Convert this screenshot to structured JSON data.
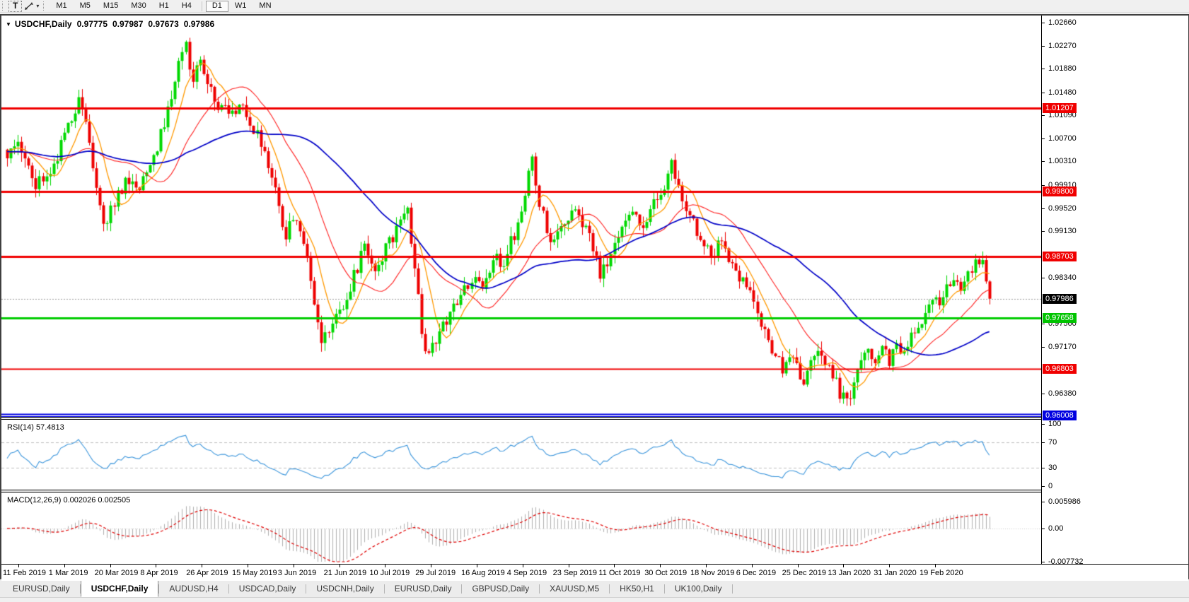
{
  "ui": {
    "toolbar": {
      "text_tool_label": "T",
      "timeframes": [
        {
          "label": "M1",
          "active": false
        },
        {
          "label": "M5",
          "active": false
        },
        {
          "label": "M15",
          "active": false
        },
        {
          "label": "M30",
          "active": false
        },
        {
          "label": "H1",
          "active": false
        },
        {
          "label": "H4",
          "active": false
        },
        {
          "label": "D1",
          "active": true
        },
        {
          "label": "W1",
          "active": false
        },
        {
          "label": "MN",
          "active": false
        }
      ]
    },
    "title": {
      "symbol": "USDCHF,Daily",
      "open": "0.97775",
      "high": "0.97987",
      "low": "0.97673",
      "close": "0.97986"
    },
    "rsi": {
      "label": "RSI(14) 57.4813",
      "axis_labels": [
        "100",
        "70",
        "30",
        "0"
      ]
    },
    "macd": {
      "label": "MACD(12,26,9) 0.002026 0.002505",
      "axis_labels": [
        "0.005986",
        "0.00",
        "-0.007732"
      ]
    },
    "tabs": [
      {
        "label": "EURUSD,Daily",
        "active": false
      },
      {
        "label": "USDCHF,Daily",
        "active": true
      },
      {
        "label": "AUDUSD,H4",
        "active": false
      },
      {
        "label": "USDCAD,Daily",
        "active": false
      },
      {
        "label": "USDCNH,Daily",
        "active": false
      },
      {
        "label": "EURUSD,Daily",
        "active": false
      },
      {
        "label": "GBPUSD,Daily",
        "active": false
      },
      {
        "label": "XAUUSD,M5",
        "active": false
      },
      {
        "label": "HK50,H1",
        "active": false
      },
      {
        "label": "UK100,Daily",
        "active": false
      }
    ]
  },
  "chart_data": {
    "type": "candlestick",
    "symbol": "USDCHF",
    "timeframe": "Daily",
    "ohlc_current": {
      "open": 0.97775,
      "high": 0.97987,
      "low": 0.97673,
      "close": 0.97986
    },
    "current_price": {
      "value": 0.97986,
      "label": "0.97986"
    },
    "y_axis_ticks": [
      {
        "price": 1.0266,
        "label": "1.02660"
      },
      {
        "price": 1.0227,
        "label": "1.02270"
      },
      {
        "price": 1.0188,
        "label": "1.01880"
      },
      {
        "price": 1.0148,
        "label": "1.01480"
      },
      {
        "price": 1.0109,
        "label": "1.01090"
      },
      {
        "price": 1.007,
        "label": "1.00700"
      },
      {
        "price": 1.0031,
        "label": "1.00310"
      },
      {
        "price": 0.9991,
        "label": "0.99910"
      },
      {
        "price": 0.9952,
        "label": "0.99520"
      },
      {
        "price": 0.9913,
        "label": "0.99130"
      },
      {
        "price": 0.9834,
        "label": "0.98340"
      },
      {
        "price": 0.9756,
        "label": "0.97560"
      },
      {
        "price": 0.9717,
        "label": "0.97170"
      },
      {
        "price": 0.9638,
        "label": "0.96380"
      }
    ],
    "horizontal_levels": [
      {
        "price": 1.01207,
        "label": "1.01207",
        "color": "#f00000",
        "style": "solid",
        "width": 3
      },
      {
        "price": 0.998,
        "label": "0.99800",
        "color": "#f00000",
        "style": "solid",
        "width": 3
      },
      {
        "price": 0.98703,
        "label": "0.98703",
        "color": "#f00000",
        "style": "solid",
        "width": 3
      },
      {
        "price": 0.97658,
        "label": "0.97658",
        "color": "#00cc00",
        "style": "solid",
        "width": 3
      },
      {
        "price": 0.96803,
        "label": "0.96803",
        "color": "#f00000",
        "style": "solid",
        "width": 2
      },
      {
        "price": 0.96008,
        "label": "0.96008",
        "color": "#0000e0",
        "style": "double",
        "width": 2
      }
    ],
    "x_axis_dates": [
      "11 Feb 2019",
      "1 Mar 2019",
      "20 Mar 2019",
      "8 Apr 2019",
      "26 Apr 2019",
      "15 May 2019",
      "3 Jun 2019",
      "21 Jun 2019",
      "10 Jul 2019",
      "29 Jul 2019",
      "16 Aug 2019",
      "4 Sep 2019",
      "23 Sep 2019",
      "11 Oct 2019",
      "30 Oct 2019",
      "18 Nov 2019",
      "6 Dec 2019",
      "25 Dec 2019",
      "13 Jan 2020",
      "31 Jan 2020",
      "19 Feb 2020"
    ],
    "y_range": [
      0.95985,
      1.0278
    ],
    "days": 276,
    "last_close": 0.97986,
    "price_path_anchors": [
      [
        -55,
        1.006
      ],
      [
        -25,
        1.004
      ],
      [
        -8,
        1.0045
      ],
      [
        0,
        1.0048
      ],
      [
        2,
        1.0068
      ],
      [
        5,
        1.0042
      ],
      [
        8,
        0.9992
      ],
      [
        11,
        1.0008
      ],
      [
        14,
        1.004
      ],
      [
        17,
        1.009
      ],
      [
        20,
        1.0128
      ],
      [
        22,
        1.01
      ],
      [
        24,
        1.0018
      ],
      [
        27,
        0.9925
      ],
      [
        30,
        0.9962
      ],
      [
        33,
        1.0
      ],
      [
        36,
        0.9985
      ],
      [
        39,
        1.0008
      ],
      [
        42,
        1.0052
      ],
      [
        45,
        1.012
      ],
      [
        48,
        1.019
      ],
      [
        50,
        1.0226
      ],
      [
        52,
        1.0168
      ],
      [
        54,
        1.0212
      ],
      [
        56,
        1.0158
      ],
      [
        59,
        1.0128
      ],
      [
        63,
        1.0112
      ],
      [
        66,
        1.0125
      ],
      [
        69,
        1.0088
      ],
      [
        72,
        1.004
      ],
      [
        75,
        0.9982
      ],
      [
        78,
        0.9906
      ],
      [
        80,
        0.9932
      ],
      [
        83,
        0.9896
      ],
      [
        86,
        0.9792
      ],
      [
        88,
        0.9728
      ],
      [
        91,
        0.9762
      ],
      [
        94,
        0.9788
      ],
      [
        97,
        0.9836
      ],
      [
        100,
        0.9886
      ],
      [
        103,
        0.9854
      ],
      [
        106,
        0.9882
      ],
      [
        109,
        0.9914
      ],
      [
        112,
        0.9948
      ],
      [
        114,
        0.9848
      ],
      [
        116,
        0.9742
      ],
      [
        118,
        0.9698
      ],
      [
        121,
        0.9742
      ],
      [
        124,
        0.9778
      ],
      [
        127,
        0.9802
      ],
      [
        130,
        0.983
      ],
      [
        133,
        0.9812
      ],
      [
        136,
        0.9868
      ],
      [
        139,
        0.9862
      ],
      [
        142,
        0.9908
      ],
      [
        145,
        0.9978
      ],
      [
        147,
        1.0038
      ],
      [
        149,
        0.9958
      ],
      [
        152,
        0.99
      ],
      [
        155,
        0.9922
      ],
      [
        158,
        0.9948
      ],
      [
        161,
        0.9928
      ],
      [
        164,
        0.9888
      ],
      [
        166,
        0.984
      ],
      [
        169,
        0.9872
      ],
      [
        172,
        0.9912
      ],
      [
        175,
        0.9948
      ],
      [
        178,
        0.9922
      ],
      [
        181,
        0.9958
      ],
      [
        184,
        0.9988
      ],
      [
        186,
        1.0028
      ],
      [
        188,
        0.9982
      ],
      [
        191,
        0.994
      ],
      [
        194,
        0.9898
      ],
      [
        197,
        0.9868
      ],
      [
        200,
        0.9894
      ],
      [
        203,
        0.9858
      ],
      [
        206,
        0.9828
      ],
      [
        209,
        0.9788
      ],
      [
        212,
        0.974
      ],
      [
        215,
        0.97
      ],
      [
        217,
        0.9682
      ],
      [
        219,
        0.9706
      ],
      [
        221,
        0.9678
      ],
      [
        223,
        0.9662
      ],
      [
        225,
        0.9702
      ],
      [
        227,
        0.9722
      ],
      [
        229,
        0.969
      ],
      [
        231,
        0.9668
      ],
      [
        233,
        0.964
      ],
      [
        235,
        0.9622
      ],
      [
        237,
        0.9652
      ],
      [
        239,
        0.9692
      ],
      [
        241,
        0.9712
      ],
      [
        243,
        0.97
      ],
      [
        245,
        0.9718
      ],
      [
        247,
        0.969
      ],
      [
        249,
        0.9722
      ],
      [
        251,
        0.9708
      ],
      [
        253,
        0.9735
      ],
      [
        255,
        0.975
      ],
      [
        257,
        0.9775
      ],
      [
        259,
        0.98
      ],
      [
        261,
        0.9788
      ],
      [
        263,
        0.9812
      ],
      [
        265,
        0.9835
      ],
      [
        267,
        0.9822
      ],
      [
        269,
        0.9845
      ],
      [
        271,
        0.9862
      ],
      [
        273,
        0.9858
      ],
      [
        274,
        0.982
      ],
      [
        275,
        0.97986
      ]
    ],
    "indicators": {
      "moving_averages": [
        {
          "period": 8,
          "color": "#ff9900"
        },
        {
          "period": 21,
          "color": "#ff2020"
        },
        {
          "period": 50,
          "color": "#0000c8"
        }
      ],
      "rsi": {
        "period": 14,
        "value": 57.4813,
        "levels": [
          70,
          30
        ],
        "color": "#3c96dc"
      },
      "macd": {
        "fast": 12,
        "slow": 26,
        "signal": 9,
        "value": 0.002026,
        "signal_value": 0.002505,
        "histogram_color": "#b0b0b0",
        "signal_color": "#e00000",
        "axis_max": 0.005986,
        "axis_min": -0.007732
      }
    },
    "colors": {
      "bull": "#00d800",
      "bear": "#ee0000",
      "background": "#ffffff",
      "current_price_line": "#999999",
      "current_price_badge": "#000000"
    }
  }
}
